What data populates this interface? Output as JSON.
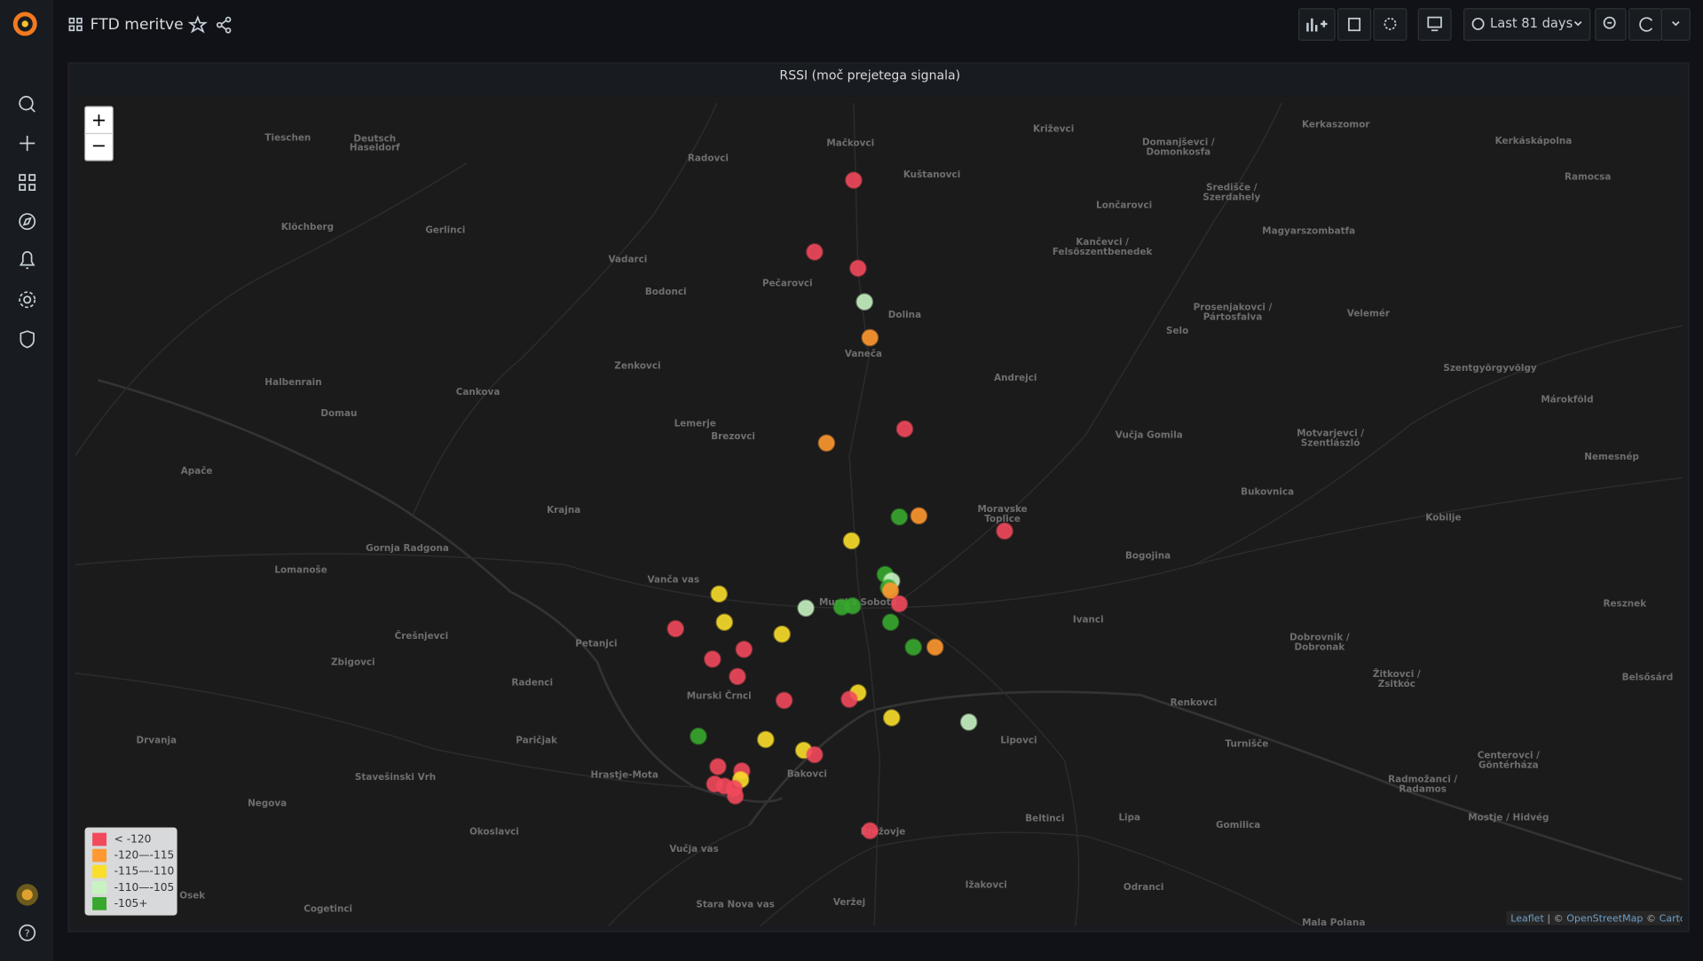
{
  "header": {
    "title": "FTD meritve",
    "time_range": "Last 81 days"
  },
  "panel": {
    "title": "RSSI (moč prejetega signala)",
    "zoom_in": "+",
    "zoom_out": "−",
    "legend": [
      {
        "label": "< -120",
        "color": "#f2495c"
      },
      {
        "label": "-120—-115",
        "color": "#ff9830"
      },
      {
        "label": "-115—-110",
        "color": "#fade2a"
      },
      {
        "label": "-110—-105",
        "color": "#c8f2c2"
      },
      {
        "label": "-105+",
        "color": "#37a82d"
      }
    ],
    "attribution": [
      "Leaflet",
      "| ©",
      "OpenStreetMap",
      "©",
      "CartoDB"
    ],
    "map_labels": [
      "Mačkovci",
      "Radovci",
      "Kuštanovci",
      "Križevci",
      "Tieschen",
      "Deutsch",
      "Haseldorf",
      "Kerkaszomor",
      "Kerkáskápolna",
      "Domanjševci /",
      "Domonkosfa",
      "Ramocsa",
      "Lončarovci",
      "Središče /",
      "Szerdahely",
      "Klöchberg",
      "Gerlinci",
      "Vadarci",
      "Kančevci /",
      "Felsöszentbenedek",
      "Magyarszombatfa",
      "Pečarovci",
      "Bodonci",
      "Dolina",
      "Prosenjakovci /",
      "Pártosfalva",
      "Velemér",
      "Selo",
      "Vaneča",
      "Zenkovci",
      "Halbenrain",
      "Andrejci",
      "Szentgyörgyvölgy",
      "Cankova",
      "Domau",
      "Lemerje",
      "Brezovci",
      "Vučja Gomila",
      "Motvarjevci /",
      "Szentlászló",
      "Márokföld",
      "Apače",
      "Nemesnép",
      "Bukovnica",
      "Krajna",
      "Moravske",
      "Toplice",
      "Kobilje",
      "Gornja Radgona",
      "Bogojina",
      "Lomanoše",
      "Vanča vas",
      "Murska Sobota",
      "Resznek",
      "Ivanci",
      "Črešnjevci",
      "Petanjci",
      "Dobrovnik /",
      "Dobronak",
      "Zbigovci",
      "Radenci",
      "Murski Črnci",
      "Žitkovci /",
      "Zsitkóc",
      "Belsősárd",
      "Renkovci",
      "Drvanja",
      "Paričjak",
      "Lipovci",
      "Turnišče",
      "Hrastje-Mota",
      "Stavešinski Vrh",
      "Bakovci",
      "Centerovci /",
      "Göntérháza",
      "Radmožanci /",
      "Radamos",
      "Negova",
      "Beltinci",
      "Lipa",
      "Gomilica",
      "Mostje / Hidvég",
      "Okoslavci",
      "Brežovje",
      "Vučja vas",
      "Osek",
      "Ižakovci",
      "Odranci",
      "Stara Nova vas",
      "Veržej",
      "Cogetinci",
      "Mala Polana"
    ]
  }
}
